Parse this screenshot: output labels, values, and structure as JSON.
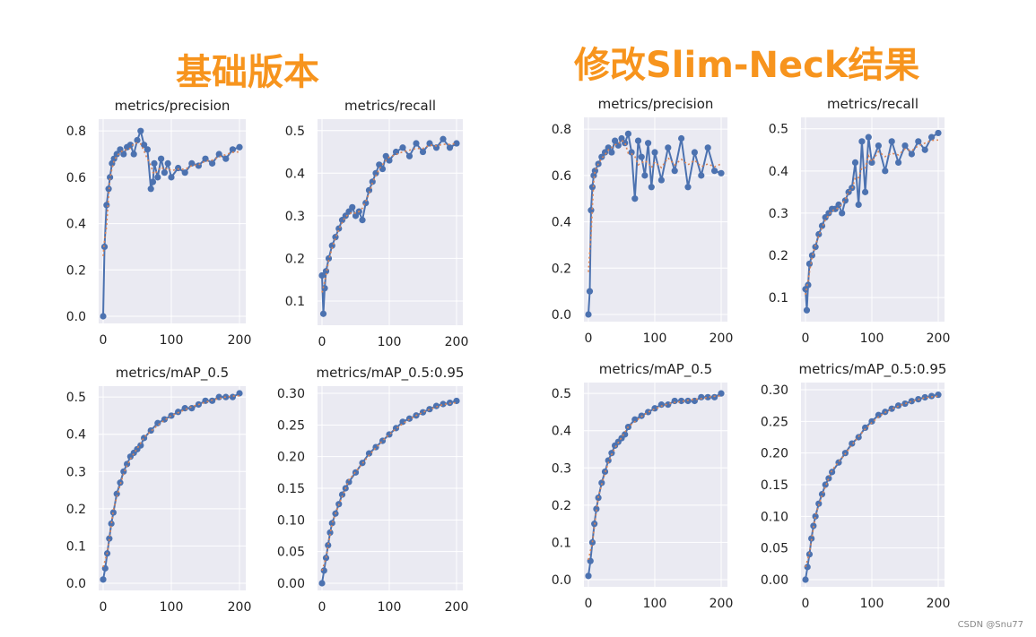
{
  "headings": {
    "left": "基础版本",
    "right": "修改Slim-Neck结果"
  },
  "watermark": "CSDN @Snu77",
  "colors": {
    "heading": "#f7941d",
    "line": "#4c72b0",
    "smooth": "#dd8452",
    "plot_bg": "#eaeaf2",
    "grid": "#ffffff"
  },
  "chart_data": [
    {
      "type": "line",
      "group": "基础版本",
      "title": "metrics/precision",
      "xlim": [
        0,
        200
      ],
      "xticks": [
        0,
        100,
        200
      ],
      "ylim": [
        0.0,
        0.82
      ],
      "yticks": [
        0.0,
        0.2,
        0.4,
        0.6,
        0.8
      ],
      "ytick_labels": [
        "0.0",
        "0.2",
        "0.4",
        "0.6",
        "0.8"
      ],
      "series": [
        {
          "x": [
            0,
            2,
            5,
            8,
            10,
            13,
            16,
            20,
            25,
            30,
            35,
            40,
            45,
            50,
            55,
            60,
            65,
            70,
            73,
            75,
            80,
            85,
            90,
            95,
            100,
            110,
            120,
            130,
            140,
            150,
            160,
            170,
            180,
            190,
            200
          ],
          "y": [
            0.0,
            0.3,
            0.48,
            0.55,
            0.6,
            0.66,
            0.68,
            0.7,
            0.72,
            0.7,
            0.73,
            0.74,
            0.7,
            0.76,
            0.8,
            0.74,
            0.72,
            0.55,
            0.58,
            0.66,
            0.6,
            0.68,
            0.62,
            0.66,
            0.6,
            0.64,
            0.62,
            0.66,
            0.65,
            0.68,
            0.66,
            0.7,
            0.68,
            0.72,
            0.73
          ]
        }
      ]
    },
    {
      "type": "line",
      "group": "基础版本",
      "title": "metrics/recall",
      "xlim": [
        0,
        200
      ],
      "xticks": [
        0,
        100,
        200
      ],
      "ylim": [
        0.06,
        0.51
      ],
      "yticks": [
        0.1,
        0.2,
        0.3,
        0.4,
        0.5
      ],
      "ytick_labels": [
        "0.1",
        "0.2",
        "0.3",
        "0.4",
        "0.5"
      ],
      "series": [
        {
          "x": [
            0,
            2,
            4,
            6,
            10,
            15,
            20,
            25,
            30,
            35,
            40,
            45,
            50,
            55,
            60,
            65,
            70,
            75,
            80,
            85,
            90,
            95,
            100,
            110,
            120,
            130,
            140,
            150,
            160,
            170,
            180,
            190,
            200
          ],
          "y": [
            0.16,
            0.07,
            0.13,
            0.17,
            0.2,
            0.23,
            0.25,
            0.27,
            0.29,
            0.3,
            0.31,
            0.32,
            0.3,
            0.31,
            0.29,
            0.33,
            0.36,
            0.38,
            0.4,
            0.42,
            0.41,
            0.44,
            0.43,
            0.45,
            0.46,
            0.44,
            0.47,
            0.45,
            0.47,
            0.46,
            0.48,
            0.46,
            0.47
          ]
        }
      ]
    },
    {
      "type": "line",
      "group": "基础版本",
      "title": "metrics/mAP_0.5",
      "xlim": [
        0,
        200
      ],
      "xticks": [
        0,
        100,
        200
      ],
      "ylim": [
        0.0,
        0.51
      ],
      "yticks": [
        0.0,
        0.1,
        0.2,
        0.3,
        0.4,
        0.5
      ],
      "ytick_labels": [
        "0.0",
        "0.1",
        "0.2",
        "0.3",
        "0.4",
        "0.5"
      ],
      "series": [
        {
          "x": [
            0,
            3,
            6,
            9,
            12,
            15,
            20,
            25,
            30,
            35,
            40,
            45,
            50,
            55,
            60,
            70,
            80,
            90,
            100,
            110,
            120,
            130,
            140,
            150,
            160,
            170,
            180,
            190,
            200
          ],
          "y": [
            0.01,
            0.04,
            0.08,
            0.12,
            0.16,
            0.19,
            0.24,
            0.27,
            0.3,
            0.32,
            0.34,
            0.35,
            0.36,
            0.37,
            0.39,
            0.41,
            0.43,
            0.44,
            0.45,
            0.46,
            0.47,
            0.47,
            0.48,
            0.49,
            0.49,
            0.5,
            0.5,
            0.5,
            0.51
          ]
        }
      ]
    },
    {
      "type": "line",
      "group": "基础版本",
      "title": "metrics/mAP_0.5:0.95",
      "xlim": [
        0,
        200
      ],
      "xticks": [
        0,
        100,
        200
      ],
      "ylim": [
        0.0,
        0.3
      ],
      "yticks": [
        0.0,
        0.05,
        0.1,
        0.15,
        0.2,
        0.25,
        0.3
      ],
      "ytick_labels": [
        "0.00",
        "0.05",
        "0.10",
        "0.15",
        "0.20",
        "0.25",
        "0.30"
      ],
      "series": [
        {
          "x": [
            0,
            3,
            6,
            9,
            12,
            15,
            20,
            25,
            30,
            35,
            40,
            50,
            60,
            70,
            80,
            90,
            100,
            110,
            120,
            130,
            140,
            150,
            160,
            170,
            180,
            190,
            200
          ],
          "y": [
            0.0,
            0.02,
            0.04,
            0.06,
            0.08,
            0.095,
            0.11,
            0.125,
            0.14,
            0.15,
            0.16,
            0.175,
            0.19,
            0.205,
            0.215,
            0.225,
            0.235,
            0.245,
            0.255,
            0.26,
            0.265,
            0.27,
            0.275,
            0.28,
            0.283,
            0.285,
            0.288
          ]
        }
      ]
    },
    {
      "type": "line",
      "group": "修改Slim-Neck结果",
      "title": "metrics/precision",
      "xlim": [
        0,
        200
      ],
      "xticks": [
        0,
        100,
        200
      ],
      "ylim": [
        0.0,
        0.82
      ],
      "yticks": [
        0.0,
        0.2,
        0.4,
        0.6,
        0.8
      ],
      "ytick_labels": [
        "0.0",
        "0.2",
        "0.4",
        "0.6",
        "0.8"
      ],
      "series": [
        {
          "x": [
            0,
            2,
            4,
            6,
            8,
            10,
            15,
            20,
            25,
            30,
            35,
            40,
            45,
            50,
            55,
            60,
            65,
            70,
            75,
            80,
            85,
            90,
            95,
            100,
            110,
            120,
            130,
            140,
            150,
            160,
            170,
            180,
            190,
            200
          ],
          "y": [
            0.0,
            0.1,
            0.45,
            0.55,
            0.6,
            0.62,
            0.65,
            0.68,
            0.7,
            0.72,
            0.7,
            0.75,
            0.73,
            0.76,
            0.74,
            0.78,
            0.7,
            0.5,
            0.75,
            0.68,
            0.6,
            0.74,
            0.55,
            0.7,
            0.58,
            0.72,
            0.62,
            0.76,
            0.55,
            0.7,
            0.6,
            0.72,
            0.62,
            0.61
          ]
        }
      ]
    },
    {
      "type": "line",
      "group": "修改Slim-Neck结果",
      "title": "metrics/recall",
      "xlim": [
        0,
        200
      ],
      "xticks": [
        0,
        100,
        200
      ],
      "ylim": [
        0.06,
        0.51
      ],
      "yticks": [
        0.1,
        0.2,
        0.3,
        0.4,
        0.5
      ],
      "ytick_labels": [
        "0.1",
        "0.2",
        "0.3",
        "0.4",
        "0.5"
      ],
      "series": [
        {
          "x": [
            0,
            2,
            4,
            6,
            10,
            15,
            20,
            25,
            30,
            35,
            40,
            45,
            50,
            55,
            60,
            65,
            70,
            75,
            80,
            85,
            90,
            95,
            100,
            110,
            120,
            130,
            140,
            150,
            160,
            170,
            180,
            190,
            200
          ],
          "y": [
            0.12,
            0.07,
            0.13,
            0.18,
            0.2,
            0.22,
            0.25,
            0.27,
            0.29,
            0.3,
            0.31,
            0.31,
            0.32,
            0.3,
            0.33,
            0.35,
            0.36,
            0.42,
            0.32,
            0.47,
            0.35,
            0.48,
            0.42,
            0.46,
            0.4,
            0.47,
            0.42,
            0.46,
            0.44,
            0.47,
            0.45,
            0.48,
            0.49
          ]
        }
      ]
    },
    {
      "type": "line",
      "group": "修改Slim-Neck结果",
      "title": "metrics/mAP_0.5",
      "xlim": [
        0,
        200
      ],
      "xticks": [
        0,
        100,
        200
      ],
      "ylim": [
        0.0,
        0.51
      ],
      "yticks": [
        0.0,
        0.1,
        0.2,
        0.3,
        0.4,
        0.5
      ],
      "ytick_labels": [
        "0.0",
        "0.1",
        "0.2",
        "0.3",
        "0.4",
        "0.5"
      ],
      "series": [
        {
          "x": [
            0,
            3,
            6,
            9,
            12,
            15,
            20,
            25,
            30,
            35,
            40,
            45,
            50,
            55,
            60,
            70,
            80,
            90,
            100,
            110,
            120,
            130,
            140,
            150,
            160,
            170,
            180,
            190,
            200
          ],
          "y": [
            0.01,
            0.05,
            0.1,
            0.15,
            0.19,
            0.22,
            0.26,
            0.29,
            0.32,
            0.34,
            0.36,
            0.37,
            0.38,
            0.39,
            0.41,
            0.43,
            0.44,
            0.45,
            0.46,
            0.47,
            0.47,
            0.48,
            0.48,
            0.48,
            0.48,
            0.49,
            0.49,
            0.49,
            0.5
          ]
        }
      ]
    },
    {
      "type": "line",
      "group": "修改Slim-Neck结果",
      "title": "metrics/mAP_0.5:0.95",
      "xlim": [
        0,
        200
      ],
      "xticks": [
        0,
        100,
        200
      ],
      "ylim": [
        0.0,
        0.3
      ],
      "yticks": [
        0.0,
        0.05,
        0.1,
        0.15,
        0.2,
        0.25,
        0.3
      ],
      "ytick_labels": [
        "0.00",
        "0.05",
        "0.10",
        "0.15",
        "0.20",
        "0.25",
        "0.30"
      ],
      "series": [
        {
          "x": [
            0,
            3,
            6,
            9,
            12,
            15,
            20,
            25,
            30,
            35,
            40,
            50,
            60,
            70,
            80,
            90,
            100,
            110,
            120,
            130,
            140,
            150,
            160,
            170,
            180,
            190,
            200
          ],
          "y": [
            0.0,
            0.02,
            0.04,
            0.065,
            0.085,
            0.1,
            0.12,
            0.135,
            0.15,
            0.16,
            0.17,
            0.185,
            0.2,
            0.215,
            0.225,
            0.24,
            0.25,
            0.26,
            0.265,
            0.27,
            0.275,
            0.278,
            0.282,
            0.285,
            0.288,
            0.29,
            0.292
          ]
        }
      ]
    }
  ]
}
